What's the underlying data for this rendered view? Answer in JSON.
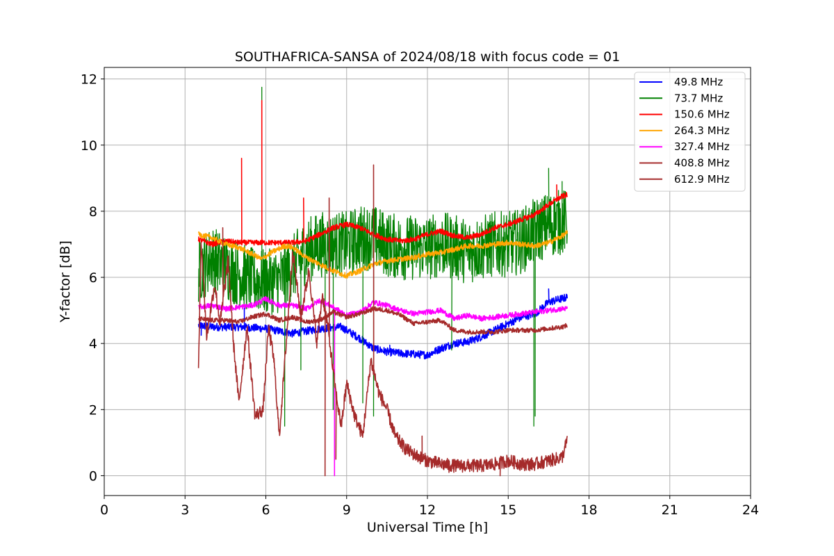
{
  "chart_data": {
    "type": "line",
    "title": "SOUTHAFRICA-SANSA of 2024/08/18 with focus code = 01",
    "xlabel": "Universal Time [h]",
    "ylabel": "Y-factor [dB]",
    "xlim": [
      0,
      24
    ],
    "ylim": [
      -0.6,
      12.35
    ],
    "xticks": [
      0,
      3,
      6,
      9,
      12,
      15,
      18,
      21,
      24
    ],
    "yticks": [
      0,
      2,
      4,
      6,
      8,
      10,
      12
    ],
    "grid": true,
    "legend_position": "top-right",
    "series": [
      {
        "name": " 49.8 MHz",
        "color": "#0000ff",
        "noise": 0.12,
        "points": [
          [
            3.5,
            4.55
          ],
          [
            4,
            4.5
          ],
          [
            5,
            4.5
          ],
          [
            6,
            4.45
          ],
          [
            7,
            4.3
          ],
          [
            8,
            4.45
          ],
          [
            8.8,
            4.5
          ],
          [
            9.5,
            4.15
          ],
          [
            10,
            3.85
          ],
          [
            10.5,
            3.75
          ],
          [
            11,
            3.7
          ],
          [
            12,
            3.65
          ],
          [
            12.5,
            3.85
          ],
          [
            13,
            4.0
          ],
          [
            13.5,
            4.05
          ],
          [
            14,
            4.2
          ],
          [
            14.5,
            4.4
          ],
          [
            15,
            4.6
          ],
          [
            15.5,
            4.8
          ],
          [
            16,
            4.9
          ],
          [
            16.5,
            5.25
          ],
          [
            17.2,
            5.4
          ]
        ],
        "spikes": [
          [
            3.6,
            4.25
          ],
          [
            5.2,
            5.15
          ],
          [
            7.3,
            4.95
          ],
          [
            10.6,
            3.95
          ],
          [
            16.5,
            5.65
          ]
        ]
      },
      {
        "name": " 73.7 MHz",
        "color": "#008000",
        "noise": 1.0,
        "points": [
          [
            3.5,
            6.2
          ],
          [
            4,
            6.6
          ],
          [
            4.5,
            6.3
          ],
          [
            5,
            6.1
          ],
          [
            5.5,
            5.9
          ],
          [
            6,
            5.85
          ],
          [
            6.5,
            5.9
          ],
          [
            7,
            6.3
          ],
          [
            7.5,
            6.8
          ],
          [
            8,
            7.0
          ],
          [
            8.5,
            7.0
          ],
          [
            9,
            7.0
          ],
          [
            9.5,
            7.2
          ],
          [
            10,
            7.2
          ],
          [
            10.5,
            7.0
          ],
          [
            11,
            6.9
          ],
          [
            11.5,
            6.9
          ],
          [
            12,
            6.9
          ],
          [
            12.5,
            7.0
          ],
          [
            13,
            6.9
          ],
          [
            13.5,
            6.8
          ],
          [
            14,
            6.9
          ],
          [
            14.5,
            7.0
          ],
          [
            15,
            7.0
          ],
          [
            15.5,
            7.1
          ],
          [
            16,
            7.4
          ],
          [
            16.5,
            7.6
          ],
          [
            17.2,
            7.7
          ]
        ],
        "spikes": [
          [
            5.85,
            11.75
          ],
          [
            6.7,
            1.5
          ],
          [
            7.3,
            3.2
          ],
          [
            8.2,
            3.5
          ],
          [
            8.5,
            2.0
          ],
          [
            9.6,
            2.2
          ],
          [
            10.0,
            1.8
          ],
          [
            12.9,
            3.8
          ],
          [
            15.95,
            1.5
          ],
          [
            16.0,
            1.8
          ],
          [
            16.5,
            9.3
          ],
          [
            17.0,
            8.9
          ]
        ]
      },
      {
        "name": " 150.6 MHz",
        "color": "#ff0000",
        "noise": 0.08,
        "points": [
          [
            3.5,
            7.15
          ],
          [
            4,
            7.0
          ],
          [
            4.5,
            7.1
          ],
          [
            5,
            7.05
          ],
          [
            5.5,
            7.05
          ],
          [
            6,
            7.05
          ],
          [
            6.5,
            7.05
          ],
          [
            7,
            7.05
          ],
          [
            7.5,
            7.1
          ],
          [
            8,
            7.3
          ],
          [
            8.5,
            7.5
          ],
          [
            9,
            7.6
          ],
          [
            9.5,
            7.5
          ],
          [
            10,
            7.3
          ],
          [
            10.5,
            7.15
          ],
          [
            11,
            7.1
          ],
          [
            11.5,
            7.15
          ],
          [
            12,
            7.3
          ],
          [
            12.5,
            7.4
          ],
          [
            13,
            7.25
          ],
          [
            13.5,
            7.2
          ],
          [
            14,
            7.3
          ],
          [
            14.5,
            7.5
          ],
          [
            15,
            7.6
          ],
          [
            15.5,
            7.75
          ],
          [
            16,
            7.9
          ],
          [
            16.5,
            8.2
          ],
          [
            17,
            8.45
          ],
          [
            17.2,
            8.5
          ]
        ],
        "spikes": [
          [
            5.1,
            9.6
          ],
          [
            5.85,
            11.35
          ],
          [
            7.4,
            8.4
          ],
          [
            16.8,
            8.8
          ]
        ]
      },
      {
        "name": " 264.3 MHz",
        "color": "#ffa500",
        "noise": 0.08,
        "points": [
          [
            3.5,
            7.3
          ],
          [
            4,
            7.2
          ],
          [
            4.5,
            7.0
          ],
          [
            5,
            6.9
          ],
          [
            5.5,
            6.7
          ],
          [
            5.85,
            6.55
          ],
          [
            6.2,
            6.75
          ],
          [
            6.7,
            6.95
          ],
          [
            7,
            6.9
          ],
          [
            7.5,
            6.6
          ],
          [
            8,
            6.4
          ],
          [
            8.5,
            6.2
          ],
          [
            9,
            6.05
          ],
          [
            9.5,
            6.2
          ],
          [
            10,
            6.4
          ],
          [
            10.5,
            6.5
          ],
          [
            11,
            6.55
          ],
          [
            11.5,
            6.6
          ],
          [
            12,
            6.7
          ],
          [
            12.5,
            6.75
          ],
          [
            13,
            6.85
          ],
          [
            13.5,
            6.95
          ],
          [
            14,
            6.95
          ],
          [
            14.5,
            7.0
          ],
          [
            15,
            7.05
          ],
          [
            15.5,
            7.0
          ],
          [
            16,
            6.95
          ],
          [
            16.5,
            7.05
          ],
          [
            17,
            7.25
          ],
          [
            17.2,
            7.35
          ]
        ],
        "spikes": []
      },
      {
        "name": " 327.4 MHz",
        "color": "#ff00ff",
        "noise": 0.08,
        "points": [
          [
            3.5,
            5.1
          ],
          [
            4,
            5.15
          ],
          [
            4.5,
            5.05
          ],
          [
            5,
            5.1
          ],
          [
            5.5,
            5.15
          ],
          [
            6,
            5.35
          ],
          [
            6.5,
            5.15
          ],
          [
            7,
            5.15
          ],
          [
            7.5,
            5.05
          ],
          [
            8,
            5.3
          ],
          [
            8.5,
            5.1
          ],
          [
            9,
            4.85
          ],
          [
            9.5,
            4.95
          ],
          [
            10,
            5.25
          ],
          [
            10.5,
            5.15
          ],
          [
            11,
            5.0
          ],
          [
            11.5,
            4.9
          ],
          [
            12,
            4.95
          ],
          [
            12.5,
            5.0
          ],
          [
            13,
            4.75
          ],
          [
            13.5,
            4.85
          ],
          [
            14,
            4.75
          ],
          [
            14.5,
            4.8
          ],
          [
            15,
            4.85
          ],
          [
            15.5,
            4.9
          ],
          [
            16,
            4.95
          ],
          [
            16.5,
            5.0
          ],
          [
            17,
            5.05
          ],
          [
            17.2,
            5.05
          ]
        ],
        "spikes": [
          [
            8.55,
            0.0
          ]
        ]
      },
      {
        "name": " 408.8 MHz",
        "color": "#a52a2a",
        "noise": 0.07,
        "points": [
          [
            3.5,
            4.75
          ],
          [
            4,
            4.7
          ],
          [
            4.5,
            4.7
          ],
          [
            5,
            4.65
          ],
          [
            5.5,
            4.8
          ],
          [
            6,
            4.9
          ],
          [
            6.5,
            4.7
          ],
          [
            7,
            4.8
          ],
          [
            7.5,
            4.65
          ],
          [
            8,
            4.7
          ],
          [
            8.5,
            4.95
          ],
          [
            9,
            4.8
          ],
          [
            9.5,
            4.9
          ],
          [
            10,
            5.05
          ],
          [
            10.5,
            5.0
          ],
          [
            11,
            4.85
          ],
          [
            11.5,
            4.6
          ],
          [
            12,
            4.65
          ],
          [
            12.5,
            4.7
          ],
          [
            13,
            4.4
          ],
          [
            13.5,
            4.35
          ],
          [
            14,
            4.35
          ],
          [
            14.5,
            4.35
          ],
          [
            15,
            4.4
          ],
          [
            15.5,
            4.4
          ],
          [
            16,
            4.4
          ],
          [
            16.5,
            4.45
          ],
          [
            17,
            4.5
          ],
          [
            17.2,
            4.55
          ]
        ],
        "spikes": []
      },
      {
        "name": " 612.9 MHz",
        "color": "#a52a2a",
        "noise": 0.2,
        "points": [
          [
            3.5,
            3.2
          ],
          [
            3.6,
            7.2
          ],
          [
            3.8,
            4.2
          ],
          [
            4.1,
            5.8
          ],
          [
            4.3,
            4.6
          ],
          [
            4.6,
            6.5
          ],
          [
            4.8,
            4.0
          ],
          [
            5.0,
            2.2
          ],
          [
            5.3,
            4.5
          ],
          [
            5.6,
            1.8
          ],
          [
            5.9,
            2.0
          ],
          [
            6.1,
            4.5
          ],
          [
            6.3,
            3.5
          ],
          [
            6.5,
            1.2
          ],
          [
            6.8,
            4.5
          ],
          [
            7.0,
            6.8
          ],
          [
            7.3,
            4.8
          ],
          [
            7.6,
            6.2
          ],
          [
            7.9,
            4.0
          ],
          [
            8.1,
            5.5
          ],
          [
            8.3,
            4.5
          ],
          [
            8.6,
            2.5
          ],
          [
            8.8,
            1.5
          ],
          [
            9.0,
            2.8
          ],
          [
            9.3,
            1.8
          ],
          [
            9.6,
            1.2
          ],
          [
            9.9,
            3.5
          ],
          [
            10.2,
            2.5
          ],
          [
            10.5,
            2.0
          ],
          [
            10.8,
            1.2
          ],
          [
            11.2,
            0.8
          ],
          [
            11.6,
            0.6
          ],
          [
            12,
            0.45
          ],
          [
            12.5,
            0.35
          ],
          [
            13,
            0.3
          ],
          [
            13.5,
            0.3
          ],
          [
            14,
            0.3
          ],
          [
            14.5,
            0.35
          ],
          [
            15,
            0.45
          ],
          [
            15.5,
            0.35
          ],
          [
            16,
            0.35
          ],
          [
            16.5,
            0.45
          ],
          [
            17,
            0.55
          ],
          [
            17.2,
            1.1
          ]
        ],
        "spikes": [
          [
            4.4,
            7.5
          ],
          [
            8.2,
            0.0
          ],
          [
            8.35,
            8.4
          ],
          [
            8.6,
            0.5
          ],
          [
            10.0,
            9.4
          ],
          [
            11.8,
            1.2
          ],
          [
            12.8,
            0.1
          ],
          [
            14.7,
            0.0
          ]
        ]
      }
    ]
  }
}
